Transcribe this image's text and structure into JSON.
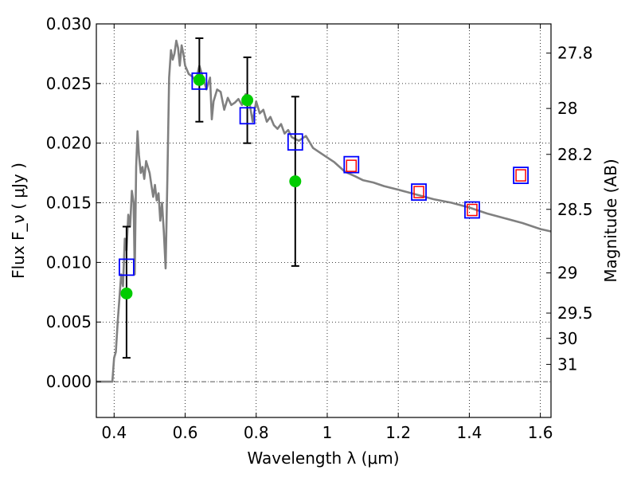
{
  "chart_data": {
    "type": "scatter",
    "xlabel": "Wavelength  λ (μm)",
    "ylabel": "Flux  F_ν  ( μJy )",
    "y2label": "Magnitude (AB)",
    "xlim": [
      0.35,
      1.63
    ],
    "ylim": [
      -0.003,
      0.03
    ],
    "grid": true,
    "x_ticks": [
      0.4,
      0.6,
      0.8,
      1.0,
      1.2,
      1.4,
      1.6
    ],
    "x_tick_labels": [
      "0.4",
      "0.6",
      "0.8",
      "1",
      "1.2",
      "1.4",
      "1.6"
    ],
    "y_ticks": [
      0.0,
      0.005,
      0.01,
      0.015,
      0.02,
      0.025,
      0.03
    ],
    "y_tick_labels": [
      "0.000",
      "0.005",
      "0.010",
      "0.015",
      "0.020",
      "0.025",
      "0.030"
    ],
    "mag_ticks": [
      {
        "label": "27.8",
        "flux": 0.02755
      },
      {
        "label": "28",
        "flux": 0.02291
      },
      {
        "label": "28.2",
        "flux": 0.01906
      },
      {
        "label": "28.5",
        "flux": 0.01445
      },
      {
        "label": "29",
        "flux": 0.00912
      },
      {
        "label": "29.5",
        "flux": 0.00575
      },
      {
        "label": "30",
        "flux": 0.00363
      },
      {
        "label": "31",
        "flux": 0.00145
      }
    ],
    "sed_curve": {
      "color": "#808080",
      "x": [
        0.35,
        0.395,
        0.4,
        0.405,
        0.41,
        0.415,
        0.42,
        0.425,
        0.43,
        0.435,
        0.44,
        0.445,
        0.45,
        0.455,
        0.458,
        0.462,
        0.466,
        0.47,
        0.475,
        0.48,
        0.485,
        0.49,
        0.495,
        0.5,
        0.505,
        0.51,
        0.515,
        0.52,
        0.525,
        0.53,
        0.535,
        0.54,
        0.545,
        0.55,
        0.555,
        0.56,
        0.565,
        0.57,
        0.575,
        0.58,
        0.585,
        0.59,
        0.595,
        0.6,
        0.61,
        0.62,
        0.63,
        0.64,
        0.65,
        0.66,
        0.67,
        0.675,
        0.68,
        0.69,
        0.7,
        0.71,
        0.72,
        0.73,
        0.74,
        0.75,
        0.76,
        0.77,
        0.78,
        0.79,
        0.8,
        0.81,
        0.82,
        0.83,
        0.84,
        0.85,
        0.86,
        0.87,
        0.88,
        0.89,
        0.9,
        0.92,
        0.94,
        0.96,
        0.98,
        1.0,
        1.02,
        1.05,
        1.08,
        1.1,
        1.13,
        1.16,
        1.2,
        1.25,
        1.3,
        1.35,
        1.4,
        1.45,
        1.5,
        1.55,
        1.6,
        1.63
      ],
      "y": [
        0.0,
        0.0,
        0.002,
        0.0025,
        0.005,
        0.007,
        0.009,
        0.008,
        0.012,
        0.011,
        0.014,
        0.013,
        0.016,
        0.015,
        0.009,
        0.018,
        0.021,
        0.019,
        0.0175,
        0.018,
        0.017,
        0.0185,
        0.018,
        0.0175,
        0.0165,
        0.0155,
        0.0165,
        0.0152,
        0.0158,
        0.0135,
        0.015,
        0.0125,
        0.0095,
        0.017,
        0.0255,
        0.0278,
        0.027,
        0.0275,
        0.0286,
        0.028,
        0.0265,
        0.0282,
        0.0275,
        0.0265,
        0.0258,
        0.0256,
        0.0252,
        0.0265,
        0.0255,
        0.0245,
        0.0255,
        0.022,
        0.0235,
        0.0245,
        0.0243,
        0.0228,
        0.0238,
        0.0232,
        0.0234,
        0.0237,
        0.0232,
        0.0241,
        0.0236,
        0.0218,
        0.0235,
        0.0225,
        0.0228,
        0.0218,
        0.0222,
        0.0215,
        0.0212,
        0.0216,
        0.0208,
        0.0211,
        0.0205,
        0.0202,
        0.0206,
        0.0196,
        0.0192,
        0.0188,
        0.0184,
        0.0176,
        0.0172,
        0.0169,
        0.0167,
        0.0164,
        0.0161,
        0.0157,
        0.0153,
        0.015,
        0.0146,
        0.0141,
        0.0137,
        0.0133,
        0.0128,
        0.0126
      ]
    },
    "observed": {
      "color": "#00cc00",
      "x": [
        0.435,
        0.64,
        0.775,
        0.91
      ],
      "y": [
        0.0074,
        0.0253,
        0.0236,
        0.0168
      ],
      "yerr_low": [
        0.002,
        0.0218,
        0.02,
        0.0097
      ],
      "yerr_high": [
        0.013,
        0.0288,
        0.0272,
        0.0239
      ]
    },
    "model_blue_squares": {
      "color": "#0000ff",
      "x": [
        0.435,
        0.64,
        0.775,
        0.91,
        1.068,
        1.258,
        1.408,
        1.545
      ],
      "y": [
        0.0096,
        0.0252,
        0.0223,
        0.0201,
        0.0182,
        0.0159,
        0.0144,
        0.0173
      ]
    },
    "model_red_squares": {
      "color": "#ff0000",
      "x": [
        1.068,
        1.258,
        1.408,
        1.545
      ],
      "y": [
        0.0181,
        0.0159,
        0.0144,
        0.0173
      ]
    }
  }
}
